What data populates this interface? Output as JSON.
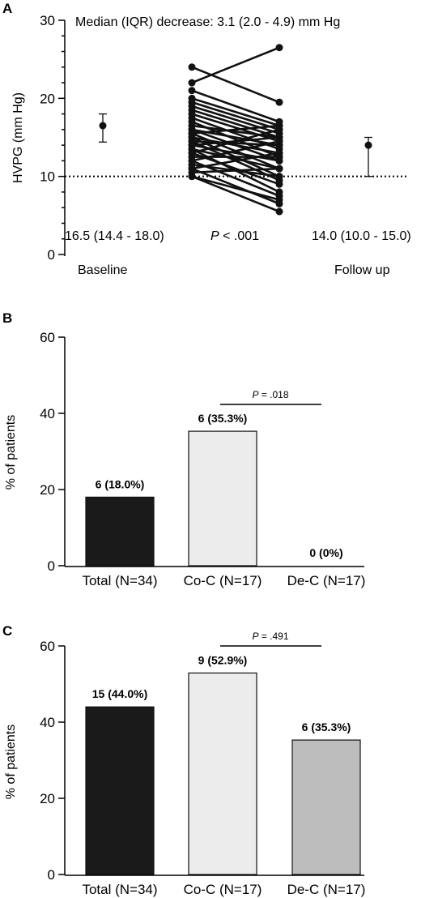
{
  "chart_data": [
    {
      "panel": "A",
      "type": "line",
      "title": "Median (IQR) decrease:  3.1 (2.0 - 4.9) mm Hg",
      "ylabel": "HVPG (mm Hg)",
      "ylim": [
        0,
        30
      ],
      "yticks": [
        "0",
        "10",
        "20",
        "30"
      ],
      "categories": [
        "Baseline",
        "Follow up"
      ],
      "threshold": 10,
      "summary": [
        {
          "label": "16.5 (14.4 - 18.0)",
          "median": 16.5,
          "low": 14.4,
          "high": 18.0
        },
        {
          "label": "14.0 (10.0 - 15.0)",
          "median": 14.0,
          "low": 10.0,
          "high": 15.0
        }
      ],
      "p_prefix": "P",
      "p_value": " < .001",
      "pairs": [
        [
          24,
          19.5
        ],
        [
          22,
          26.5
        ],
        [
          21,
          17
        ],
        [
          20,
          16.5
        ],
        [
          19.5,
          16
        ],
        [
          19,
          15.5
        ],
        [
          18.5,
          15
        ],
        [
          18,
          14.5
        ],
        [
          17.5,
          13.5
        ],
        [
          17,
          12.5
        ],
        [
          16.5,
          15
        ],
        [
          16,
          14
        ],
        [
          16,
          12
        ],
        [
          15.5,
          11
        ],
        [
          15.5,
          16.5
        ],
        [
          15,
          13
        ],
        [
          15,
          10
        ],
        [
          14.5,
          14
        ],
        [
          14.5,
          9.5
        ],
        [
          14,
          12
        ],
        [
          14,
          15
        ],
        [
          13.5,
          8
        ],
        [
          13.5,
          11
        ],
        [
          13,
          9
        ],
        [
          13,
          16
        ],
        [
          12.5,
          12.5
        ],
        [
          12,
          7.5
        ],
        [
          12,
          14.5
        ],
        [
          11.5,
          10
        ],
        [
          11,
          6.5
        ],
        [
          11,
          13
        ],
        [
          10.5,
          11
        ],
        [
          10,
          5.5
        ],
        [
          10,
          7
        ]
      ]
    },
    {
      "panel": "B",
      "type": "bar",
      "ylabel": "% of patients",
      "ylim": [
        0,
        60
      ],
      "yticks": [
        "0",
        "20",
        "40",
        "60"
      ],
      "categories": [
        "Total (N=34)",
        "Co-C (N=17)",
        "De-C (N=17)"
      ],
      "values": [
        18.0,
        35.3,
        0
      ],
      "labels": [
        "6 (18.0%)",
        "6 (35.3%)",
        "0 (0%)"
      ],
      "colors": [
        "#1a1a1a",
        "#ececec",
        "#bdbdbd"
      ],
      "p_prefix": "P",
      "p_value": " = .018"
    },
    {
      "panel": "C",
      "type": "bar",
      "ylabel": "% of patients",
      "ylim": [
        0,
        60
      ],
      "yticks": [
        "0",
        "20",
        "40",
        "60"
      ],
      "categories": [
        "Total (N=34)",
        "Co-C (N=17)",
        "De-C (N=17)"
      ],
      "values": [
        44.0,
        52.9,
        35.3
      ],
      "labels": [
        "15 (44.0%)",
        "9 (52.9%)",
        "6 (35.3%)"
      ],
      "colors": [
        "#1a1a1a",
        "#ececec",
        "#bdbdbd"
      ],
      "p_prefix": "P",
      "p_value": " = .491"
    }
  ]
}
